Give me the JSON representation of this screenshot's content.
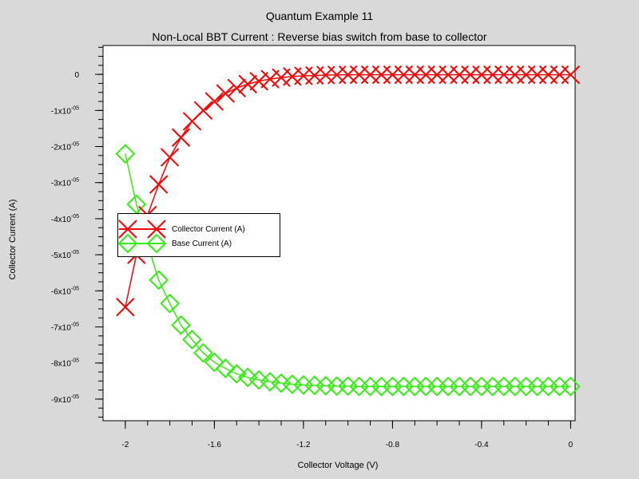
{
  "titles": {
    "main": "Quantum Example 11",
    "sub": "Non-Local BBT Current :  Reverse bias switch from base to collector"
  },
  "chart_data": {
    "type": "line",
    "xlabel": "Collector Voltage (V)",
    "ylabel": "Collector Current (A)",
    "xlim": [
      -2.1,
      0.02
    ],
    "ylim": [
      -9.6e-05,
      8e-06
    ],
    "grid": false,
    "legend_position": "center-left",
    "x_ticks": [
      {
        "value": -2.0,
        "label": "-2"
      },
      {
        "value": -1.6,
        "label": "-1.6"
      },
      {
        "value": -1.2,
        "label": "-1.2"
      },
      {
        "value": -0.8,
        "label": "-0.8"
      },
      {
        "value": -0.4,
        "label": "-0.4"
      },
      {
        "value": 0.0,
        "label": "0"
      }
    ],
    "y_ticks": [
      {
        "value": 0,
        "mantissa": "0",
        "exp": ""
      },
      {
        "value": -1e-05,
        "mantissa": "-1x10",
        "exp": "-05"
      },
      {
        "value": -2e-05,
        "mantissa": "-2x10",
        "exp": "-05"
      },
      {
        "value": -3e-05,
        "mantissa": "-3x10",
        "exp": "-05"
      },
      {
        "value": -4e-05,
        "mantissa": "-4x10",
        "exp": "-05"
      },
      {
        "value": -5e-05,
        "mantissa": "-5x10",
        "exp": "-05"
      },
      {
        "value": -6e-05,
        "mantissa": "-6x10",
        "exp": "-05"
      },
      {
        "value": -7e-05,
        "mantissa": "-7x10",
        "exp": "-05"
      },
      {
        "value": -8e-05,
        "mantissa": "-8x10",
        "exp": "-05"
      },
      {
        "value": -9e-05,
        "mantissa": "-9x10",
        "exp": "-05"
      }
    ],
    "x": [
      -2.0,
      -1.95,
      -1.9,
      -1.85,
      -1.8,
      -1.75,
      -1.7,
      -1.65,
      -1.6,
      -1.55,
      -1.5,
      -1.45,
      -1.4,
      -1.35,
      -1.3,
      -1.25,
      -1.2,
      -1.15,
      -1.1,
      -1.05,
      -1.0,
      -0.95,
      -0.9,
      -0.85,
      -0.8,
      -0.75,
      -0.7,
      -0.65,
      -0.6,
      -0.55,
      -0.5,
      -0.45,
      -0.4,
      -0.35,
      -0.3,
      -0.25,
      -0.2,
      -0.15,
      -0.1,
      -0.05,
      0.0
    ],
    "series": [
      {
        "name": "Collector Current (A)",
        "color": "#ff0000",
        "marker": "x",
        "values": [
          -6.45e-05,
          -5e-05,
          -3.9e-05,
          -3.05e-05,
          -2.3e-05,
          -1.75e-05,
          -1.3e-05,
          -1e-05,
          -7.5e-06,
          -5.3e-06,
          -3.8e-06,
          -2.7e-06,
          -1.9e-06,
          -1.3e-06,
          -9e-07,
          -6e-07,
          -4e-07,
          -3e-07,
          -2e-07,
          -1.5e-07,
          -1e-07,
          -1e-07,
          -1e-07,
          -1e-07,
          -1e-07,
          -1e-07,
          -1e-07,
          -1e-07,
          -1e-07,
          -1e-07,
          -1e-07,
          -1e-07,
          -1e-07,
          -1e-07,
          -1e-07,
          -1e-07,
          -1e-07,
          -1e-07,
          -1e-07,
          -1e-07,
          -1e-07
        ]
      },
      {
        "name": "Base Current (A)",
        "color": "#33ee11",
        "marker": "diamond",
        "values": [
          -2.2e-05,
          -3.6e-05,
          -4.7e-05,
          -5.7e-05,
          -6.35e-05,
          -6.95e-05,
          -7.35e-05,
          -7.72e-05,
          -7.98e-05,
          -8.15e-05,
          -8.3e-05,
          -8.4e-05,
          -8.47e-05,
          -8.52e-05,
          -8.56e-05,
          -8.59e-05,
          -8.61e-05,
          -8.62e-05,
          -8.63e-05,
          -8.64e-05,
          -8.64e-05,
          -8.65e-05,
          -8.65e-05,
          -8.65e-05,
          -8.65e-05,
          -8.65e-05,
          -8.65e-05,
          -8.65e-05,
          -8.65e-05,
          -8.65e-05,
          -8.65e-05,
          -8.65e-05,
          -8.65e-05,
          -8.65e-05,
          -8.65e-05,
          -8.65e-05,
          -8.65e-05,
          -8.65e-05,
          -8.65e-05,
          -8.65e-05,
          -8.65e-05
        ]
      }
    ]
  }
}
